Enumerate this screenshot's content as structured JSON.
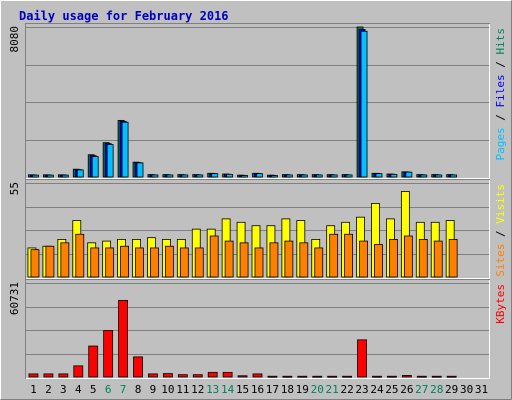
{
  "chart_data": {
    "type": "bar",
    "title": "Daily usage for February 2016",
    "categories": [
      "1",
      "2",
      "3",
      "4",
      "5",
      "6",
      "7",
      "8",
      "9",
      "10",
      "11",
      "12",
      "13",
      "14",
      "15",
      "16",
      "17",
      "18",
      "19",
      "20",
      "21",
      "22",
      "23",
      "24",
      "25",
      "26",
      "27",
      "28",
      "29",
      "30",
      "31"
    ],
    "weekend_days": [
      "6",
      "7",
      "13",
      "14",
      "20",
      "21",
      "27",
      "28"
    ],
    "colors": {
      "background": "#c0c0c0",
      "frame": "#ececec",
      "hits": "#00805c",
      "files": "#0000ff",
      "pages": "#00c0ff",
      "visits": "#ffff00",
      "sites": "#ff8000",
      "kbytes": "#ff0000",
      "title": "#0000c0",
      "weekend_label": "#00805c",
      "weekday_label": "#000000"
    },
    "panels": [
      {
        "name": "hits-files-pages",
        "ymax_label": "8080",
        "ylim": [
          0,
          8080
        ],
        "legend": [
          {
            "text": "Pages",
            "color": "#00c0ff"
          },
          {
            "text": " / ",
            "color": "#000000"
          },
          {
            "text": "Files",
            "color": "#0000ff"
          },
          {
            "text": " / ",
            "color": "#000000"
          },
          {
            "text": "Hits",
            "color": "#00805c"
          }
        ],
        "series": [
          {
            "name": "Hits",
            "color": "#00805c",
            "values": [
              120,
              120,
              120,
              420,
              1200,
              1850,
              3050,
              800,
              130,
              130,
              130,
              130,
              200,
              160,
              100,
              200,
              100,
              130,
              130,
              130,
              130,
              130,
              8080,
              200,
              160,
              280,
              130,
              130,
              130,
              0,
              0
            ]
          },
          {
            "name": "Files",
            "color": "#0000ff",
            "values": [
              110,
              110,
              110,
              400,
              1150,
              1800,
              3000,
              780,
              120,
              120,
              120,
              120,
              190,
              150,
              90,
              190,
              90,
              120,
              120,
              120,
              120,
              120,
              7950,
              190,
              150,
              270,
              120,
              120,
              120,
              0,
              0
            ]
          },
          {
            "name": "Pages",
            "color": "#00c0ff",
            "values": [
              100,
              100,
              100,
              380,
              1100,
              1750,
              2950,
              760,
              110,
              110,
              110,
              110,
              180,
              140,
              80,
              180,
              80,
              110,
              110,
              110,
              110,
              110,
              7850,
              180,
              140,
              260,
              110,
              110,
              110,
              0,
              0
            ]
          }
        ]
      },
      {
        "name": "visits-sites",
        "ymax_label": "55",
        "ylim": [
          0,
          55
        ],
        "legend": [
          {
            "text": "Sites",
            "color": "#ff8000"
          },
          {
            "text": " / ",
            "color": "#000000"
          },
          {
            "text": "Visits",
            "color": "#ffff00"
          }
        ],
        "series": [
          {
            "name": "Visits",
            "color": "#ffff00",
            "values": [
              17,
              18,
              22,
              33,
              20,
              21,
              22,
              22,
              23,
              22,
              22,
              28,
              28,
              34,
              32,
              30,
              30,
              34,
              33,
              22,
              30,
              32,
              35,
              43,
              34,
              50,
              32,
              32,
              33,
              0,
              0
            ]
          },
          {
            "name": "Sites",
            "color": "#ff8000",
            "values": [
              16,
              18,
              20,
              25,
              17,
              17,
              18,
              17,
              17,
              18,
              17,
              17,
              24,
              21,
              20,
              17,
              20,
              21,
              20,
              17,
              25,
              25,
              21,
              19,
              22,
              24,
              22,
              21,
              22,
              0,
              0
            ]
          }
        ]
      },
      {
        "name": "kbytes",
        "ymax_label": "60731",
        "ylim": [
          0,
          60731
        ],
        "legend": [
          {
            "text": "KBytes",
            "color": "#ff0000"
          }
        ],
        "series": [
          {
            "name": "KBytes",
            "color": "#ff0000",
            "values": [
              2000,
              2000,
              2000,
              7200,
              20000,
              30000,
              49500,
              13000,
              2000,
              2200,
              1500,
              1500,
              3000,
              3000,
              800,
              2000,
              500,
              500,
              500,
              500,
              500,
              500,
              24000,
              500,
              500,
              1000,
              500,
              500,
              500,
              0,
              0
            ]
          }
        ]
      }
    ]
  }
}
